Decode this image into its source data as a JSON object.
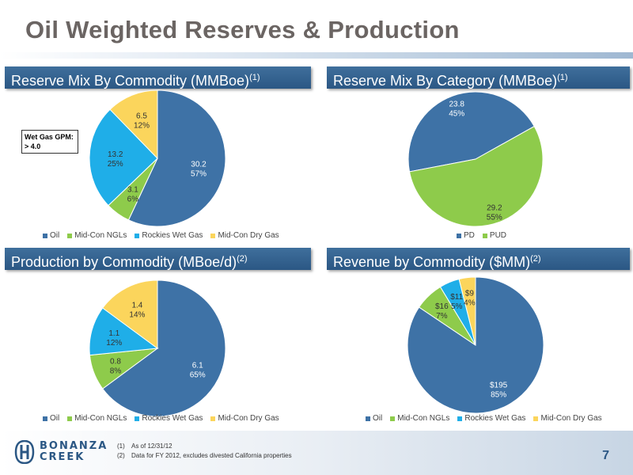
{
  "page": {
    "title": "Oil Weighted Reserves & Production",
    "page_number": "7"
  },
  "callout": {
    "line1": "Wet Gas GPM:",
    "line2": "> 4.0"
  },
  "footnotes": [
    {
      "num": "(1)",
      "text": "As of 12/31/12"
    },
    {
      "num": "(2)",
      "text": "Data for FY 2012, excludes divested California properties"
    }
  ],
  "logo": {
    "line1": "BONANZA",
    "line2": "CREEK"
  },
  "colors": {
    "oil": "#3e72a6",
    "ngl": "#8ecb4b",
    "rockies": "#1faee8",
    "drygas": "#fbd55c",
    "header": "#2b5784"
  },
  "chart_data": [
    {
      "id": "reserve-mix-commodity",
      "type": "pie",
      "title": "Reserve Mix By Commodity (MMBoe)",
      "title_note": "(1)",
      "categories": [
        "Oil",
        "Mid-Con NGLs",
        "Rockies Wet Gas",
        "Mid-Con Dry Gas"
      ],
      "values": [
        30.2,
        3.1,
        13.2,
        6.5
      ],
      "value_labels": [
        "30.2",
        "3.1",
        "13.2",
        "6.5"
      ],
      "percent_labels": [
        "57%",
        "6%",
        "25%",
        "12%"
      ],
      "colors": [
        "#3e72a6",
        "#8ecb4b",
        "#1faee8",
        "#fbd55c"
      ],
      "legend": "bottom"
    },
    {
      "id": "reserve-mix-category",
      "type": "pie",
      "title": "Reserve Mix By Category (MMBoe)",
      "title_note": "(1)",
      "categories": [
        "PD",
        "PUD"
      ],
      "values": [
        23.8,
        29.2
      ],
      "value_labels": [
        "23.8",
        "29.2"
      ],
      "percent_labels": [
        "45%",
        "55%"
      ],
      "colors": [
        "#3e72a6",
        "#8ecb4b"
      ],
      "legend": "bottom"
    },
    {
      "id": "production-commodity",
      "type": "pie",
      "title": "Production by Commodity (MBoe/d)",
      "title_note": "(2)",
      "categories": [
        "Oil",
        "Mid-Con NGLs",
        "Rockies Wet Gas",
        "Mid-Con Dry Gas"
      ],
      "values": [
        6.1,
        0.8,
        1.1,
        1.4
      ],
      "value_labels": [
        "6.1",
        "0.8",
        "1.1",
        "1.4"
      ],
      "percent_labels": [
        "65%",
        "8%",
        "12%",
        "14%"
      ],
      "colors": [
        "#3e72a6",
        "#8ecb4b",
        "#1faee8",
        "#fbd55c"
      ],
      "legend": "bottom"
    },
    {
      "id": "revenue-commodity",
      "type": "pie",
      "title": "Revenue by Commodity ($MM)",
      "title_note": "(2)",
      "categories": [
        "Oil",
        "Mid-Con NGLs",
        "Rockies Wet Gas",
        "Mid-Con Dry Gas"
      ],
      "values": [
        195,
        16,
        11,
        9
      ],
      "value_labels": [
        "$195",
        "$16",
        "$11",
        "$9"
      ],
      "percent_labels": [
        "85%",
        "7%",
        "5%",
        "4%"
      ],
      "colors": [
        "#3e72a6",
        "#8ecb4b",
        "#1faee8",
        "#fbd55c"
      ],
      "legend": "bottom"
    }
  ]
}
